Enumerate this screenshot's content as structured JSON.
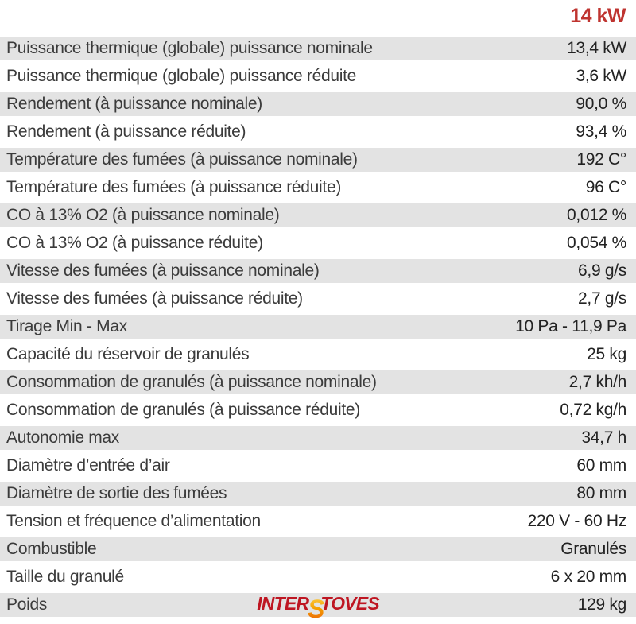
{
  "header": {
    "power_label": "14 kW",
    "accent_color": "#bf3430"
  },
  "table": {
    "rows": [
      {
        "label": "Puissance thermique (globale) puissance nominale",
        "value": "13,4 kW"
      },
      {
        "label": "Puissance thermique (globale) puissance réduite",
        "value": "3,6 kW"
      },
      {
        "label": "Rendement (à puissance nominale)",
        "value": "90,0 %"
      },
      {
        "label": "Rendement (à puissance réduite)",
        "value": "93,4 %"
      },
      {
        "label": "Température des fumées (à puissance nominale)",
        "value": "192 C°"
      },
      {
        "label": "Température des fumées (à puissance réduite)",
        "value": "96 C°"
      },
      {
        "label": "CO à 13% O2 (à puissance nominale)",
        "value": "0,012 %"
      },
      {
        "label": "CO à 13% O2 (à puissance réduite)",
        "value": "0,054 %"
      },
      {
        "label": "Vitesse des fumées (à puissance nominale)",
        "value": "6,9 g/s"
      },
      {
        "label": "Vitesse des fumées (à puissance réduite)",
        "value": "2,7 g/s"
      },
      {
        "label": "Tirage Min - Max",
        "value": "10 Pa - 11,9 Pa"
      },
      {
        "label": "Capacité du réservoir de granulés",
        "value": "25 kg"
      },
      {
        "label": "Consommation de granulés (à puissance nominale)",
        "value": "2,7 kh/h"
      },
      {
        "label": "Consommation de granulés (à puissance réduite)",
        "value": "0,72 kg/h"
      },
      {
        "label": "Autonomie max",
        "value": "34,7 h"
      },
      {
        "label": "Diamètre d’entrée d’air",
        "value": "60 mm"
      },
      {
        "label": "Diamètre de sortie des fumées",
        "value": "80 mm"
      },
      {
        "label": "Tension et fréquence d’alimentation",
        "value": "220 V - 60 Hz"
      },
      {
        "label": "Combustible",
        "value": "Granulés"
      },
      {
        "label": "Taille du granulé",
        "value": "6 x 20 mm"
      },
      {
        "label": "Poids",
        "value": "129 kg"
      }
    ],
    "row_stripe_color": "#e3e3e3"
  },
  "logo": {
    "part1": "INTER",
    "flame_letter": "S",
    "part2": "TOVES",
    "color": "#be1622",
    "flame_colors": [
      "#fdd44f",
      "#f59e00",
      "#e8590c"
    ]
  }
}
